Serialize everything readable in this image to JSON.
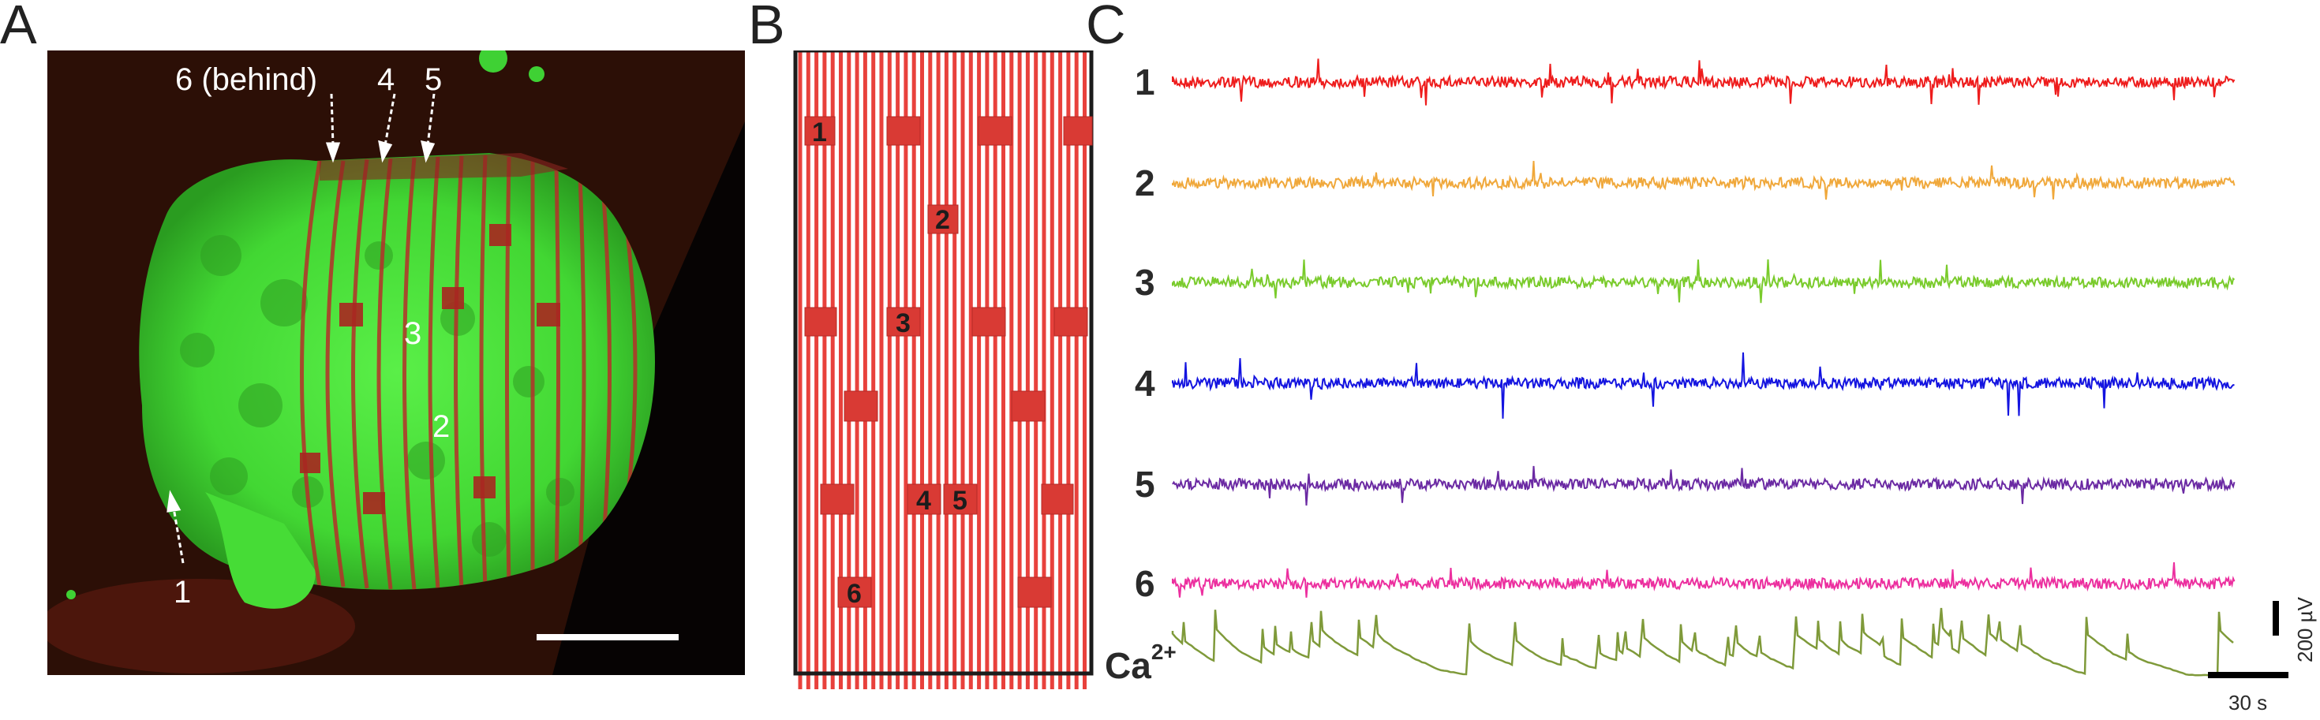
{
  "panels": {
    "A": {
      "letter": "A",
      "labels": {
        "six_behind": "6  (behind)",
        "four": "4",
        "five": "5",
        "three": "3",
        "two": "2",
        "one": "1"
      },
      "colors": {
        "tissue_green": "#49e23a",
        "mesh_red": "#c03030",
        "background": "#2a0e05"
      }
    },
    "B": {
      "letter": "B",
      "electrodes": [
        "1",
        "2",
        "3",
        "4",
        "5",
        "6"
      ],
      "colors": {
        "line_red": "#e8413c",
        "pad_red": "#d93a34",
        "frame": "#1c1c1c"
      }
    },
    "C": {
      "letter": "C",
      "traces": [
        {
          "label": "1",
          "color": "#ee1c1c"
        },
        {
          "label": "2",
          "color": "#f0a83b"
        },
        {
          "label": "3",
          "color": "#7acb2c"
        },
        {
          "label": "4",
          "color": "#1414e0"
        },
        {
          "label": "5",
          "color": "#6b2aa3"
        },
        {
          "label": "6",
          "color": "#ec2f9f"
        }
      ],
      "calcium": {
        "label": "Ca",
        "superscript": "2+",
        "color": "#7f9a3a"
      },
      "scale_bar_v": "200 µV",
      "scale_bar_h": "30 s"
    }
  }
}
